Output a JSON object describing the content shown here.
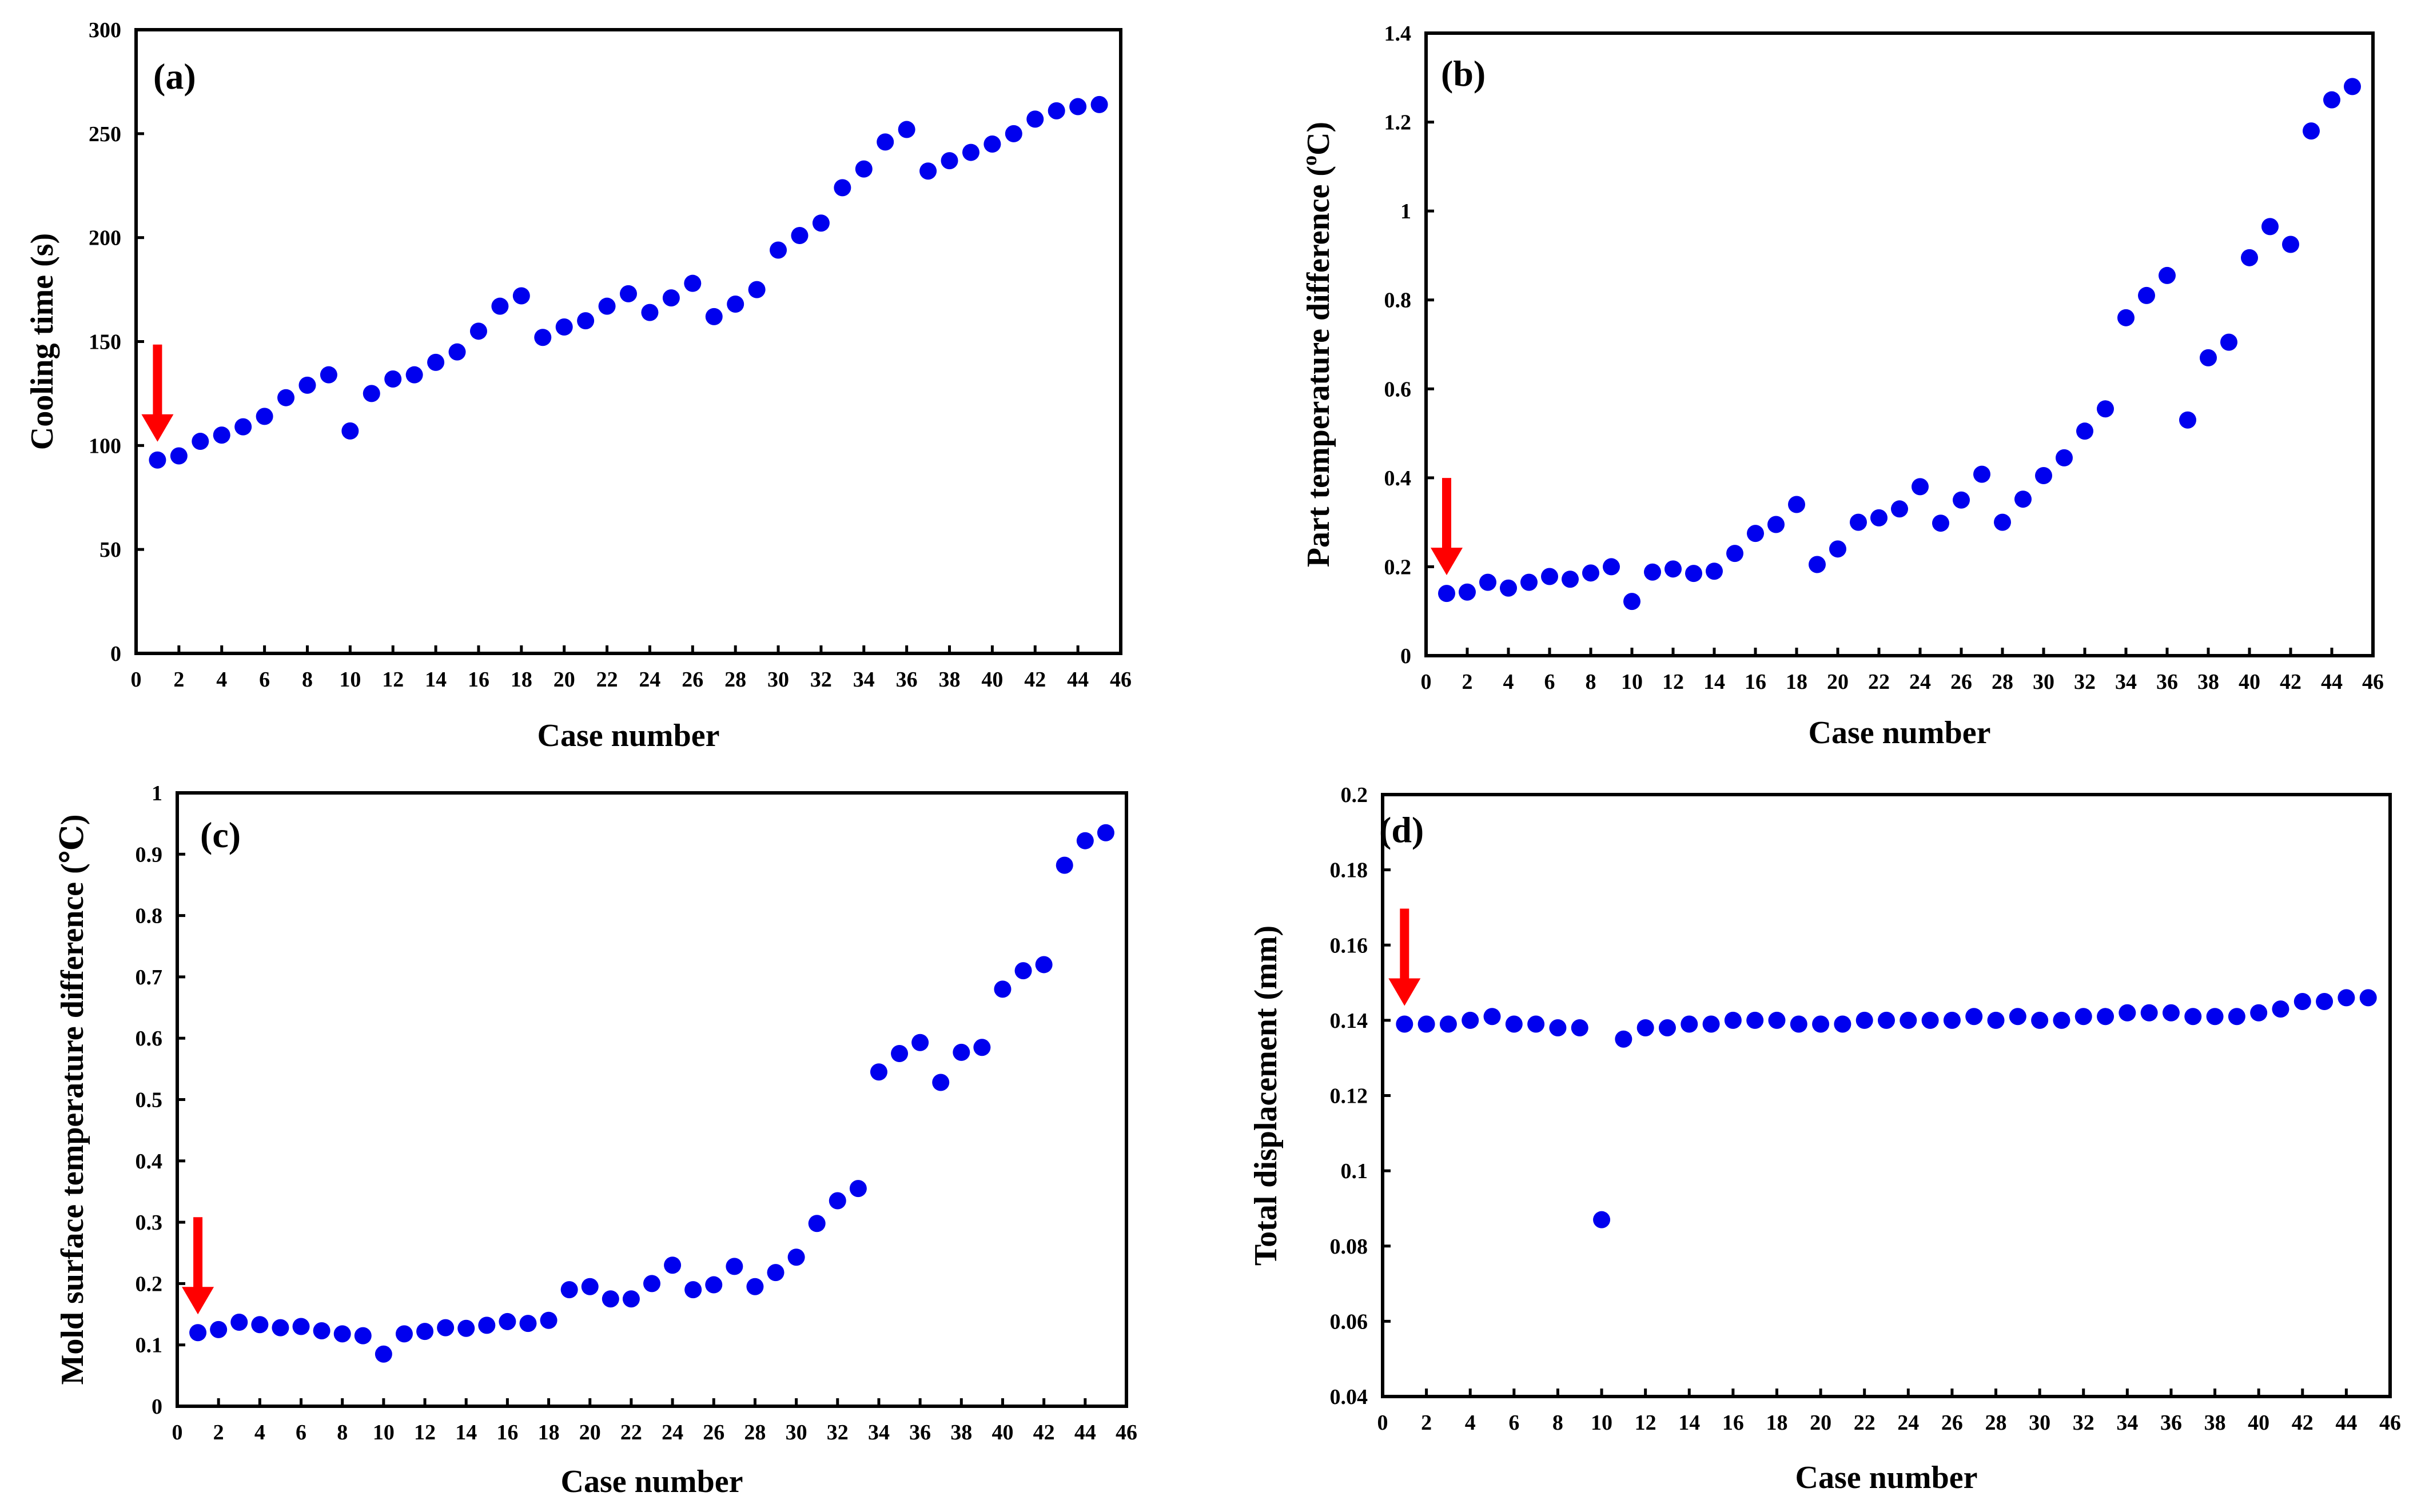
{
  "chart_data": [
    {
      "panel": "(a)",
      "type": "scatter",
      "xlabel": "Case number",
      "ylabel": "Cooling time (s)",
      "xlim": [
        0,
        46
      ],
      "xticks": [
        0,
        2,
        4,
        6,
        8,
        10,
        12,
        14,
        16,
        18,
        20,
        22,
        24,
        26,
        28,
        30,
        32,
        34,
        36,
        38,
        40,
        42,
        44,
        46
      ],
      "ylim": [
        0,
        300
      ],
      "yticks": [
        0,
        50,
        100,
        150,
        200,
        250,
        300
      ],
      "ytick_labels": [
        "0",
        "50",
        "100",
        "150",
        "200",
        "250",
        "300"
      ],
      "marker_color": "#0000ee",
      "arrow": {
        "x": 1,
        "color": "#ff0000"
      },
      "x": [
        1,
        2,
        3,
        4,
        5,
        6,
        7,
        8,
        9,
        10,
        11,
        12,
        13,
        14,
        15,
        16,
        17,
        18,
        19,
        20,
        21,
        22,
        23,
        24,
        25,
        26,
        27,
        28,
        29,
        30,
        31,
        32,
        33,
        34,
        35,
        36,
        37,
        38,
        39,
        40,
        41,
        42,
        43,
        44,
        45
      ],
      "y": [
        93,
        95,
        102,
        105,
        109,
        114,
        123,
        129,
        134,
        107,
        125,
        132,
        134,
        140,
        145,
        155,
        167,
        172,
        152,
        157,
        160,
        167,
        173,
        164,
        171,
        178,
        162,
        168,
        175,
        194,
        201,
        207,
        224,
        233,
        246,
        252,
        232,
        237,
        241,
        245,
        250,
        257,
        261,
        263,
        264
      ]
    },
    {
      "panel": "(b)",
      "type": "scatter",
      "xlabel": "Case number",
      "ylabel": "Part temperature difference (°C)",
      "ylabel_main": "Part temperature difference (",
      "ylabel_sup": "o",
      "ylabel_tail": "C)",
      "xlim": [
        0,
        46
      ],
      "xticks": [
        0,
        2,
        4,
        6,
        8,
        10,
        12,
        14,
        16,
        18,
        20,
        22,
        24,
        26,
        28,
        30,
        32,
        34,
        36,
        38,
        40,
        42,
        44,
        46
      ],
      "ylim": [
        0,
        1.4
      ],
      "yticks": [
        0,
        0.2,
        0.4,
        0.6,
        0.8,
        1,
        1.2,
        1.4
      ],
      "ytick_labels": [
        "0",
        "0.2",
        "0.4",
        "0.6",
        "0.8",
        "1",
        "1.2",
        "1.4"
      ],
      "marker_color": "#0000ee",
      "arrow": {
        "x": 1,
        "color": "#ff0000"
      },
      "x": [
        1,
        2,
        3,
        4,
        5,
        6,
        7,
        8,
        9,
        10,
        11,
        12,
        13,
        14,
        15,
        16,
        17,
        18,
        19,
        20,
        21,
        22,
        23,
        24,
        25,
        26,
        27,
        28,
        29,
        30,
        31,
        32,
        33,
        34,
        35,
        36,
        37,
        38,
        39,
        40,
        41,
        42,
        43,
        44,
        45
      ],
      "y": [
        0.14,
        0.143,
        0.165,
        0.152,
        0.165,
        0.178,
        0.172,
        0.186,
        0.2,
        0.122,
        0.188,
        0.195,
        0.185,
        0.19,
        0.23,
        0.275,
        0.295,
        0.34,
        0.205,
        0.24,
        0.3,
        0.31,
        0.33,
        0.38,
        0.298,
        0.35,
        0.408,
        0.3,
        0.352,
        0.405,
        0.445,
        0.505,
        0.555,
        0.76,
        0.81,
        0.855,
        0.53,
        0.67,
        0.705,
        0.895,
        0.965,
        0.925,
        1.18,
        1.25,
        1.28
      ]
    },
    {
      "panel": "(c)",
      "type": "scatter",
      "xlabel": "Case number",
      "ylabel": "Mold surface temperature difference (℃)",
      "xlim": [
        0,
        46
      ],
      "xticks": [
        0,
        2,
        4,
        6,
        8,
        10,
        12,
        14,
        16,
        18,
        20,
        22,
        24,
        26,
        28,
        30,
        32,
        34,
        36,
        38,
        40,
        42,
        44,
        46
      ],
      "ylim": [
        0,
        1
      ],
      "yticks": [
        0,
        0.1,
        0.2,
        0.3,
        0.4,
        0.5,
        0.6,
        0.7,
        0.8,
        0.9,
        1
      ],
      "ytick_labels": [
        "0",
        "0.1",
        "0.2",
        "0.3",
        "0.4",
        "0.5",
        "0.6",
        "0.7",
        "0.8",
        "0.9",
        "1"
      ],
      "marker_color": "#0000ee",
      "arrow": {
        "x": 1,
        "color": "#ff0000"
      },
      "x": [
        1,
        2,
        3,
        4,
        5,
        6,
        7,
        8,
        9,
        10,
        11,
        12,
        13,
        14,
        15,
        16,
        17,
        18,
        19,
        20,
        21,
        22,
        23,
        24,
        25,
        26,
        27,
        28,
        29,
        30,
        31,
        32,
        33,
        34,
        35,
        36,
        37,
        38,
        39,
        40,
        41,
        42,
        43,
        44,
        45
      ],
      "y": [
        0.12,
        0.125,
        0.137,
        0.133,
        0.128,
        0.13,
        0.123,
        0.118,
        0.115,
        0.085,
        0.118,
        0.122,
        0.128,
        0.127,
        0.132,
        0.138,
        0.135,
        0.14,
        0.19,
        0.195,
        0.175,
        0.175,
        0.2,
        0.23,
        0.19,
        0.198,
        0.228,
        0.195,
        0.218,
        0.243,
        0.298,
        0.335,
        0.355,
        0.545,
        0.575,
        0.593,
        0.528,
        0.577,
        0.585,
        0.68,
        0.71,
        0.72,
        0.882,
        0.922,
        0.935
      ]
    },
    {
      "panel": "(d)",
      "type": "scatter",
      "xlabel": "Case number",
      "ylabel": "Total displacement (mm)",
      "xlim": [
        0,
        46
      ],
      "xticks": [
        0,
        2,
        4,
        6,
        8,
        10,
        12,
        14,
        16,
        18,
        20,
        22,
        24,
        26,
        28,
        30,
        32,
        34,
        36,
        38,
        40,
        42,
        44,
        46
      ],
      "ylim": [
        0.04,
        0.2
      ],
      "yticks": [
        0.04,
        0.06,
        0.08,
        0.1,
        0.12,
        0.14,
        0.16,
        0.18,
        0.2
      ],
      "ytick_labels": [
        "0.04",
        "0.06",
        "0.08",
        "0.1",
        "0.12",
        "0.14",
        "0.16",
        "0.18",
        "0.2"
      ],
      "marker_color": "#0000ee",
      "arrow": {
        "x": 1,
        "color": "#ff0000"
      },
      "x": [
        1,
        2,
        3,
        4,
        5,
        6,
        7,
        8,
        9,
        10,
        11,
        12,
        13,
        14,
        15,
        16,
        17,
        18,
        19,
        20,
        21,
        22,
        23,
        24,
        25,
        26,
        27,
        28,
        29,
        30,
        31,
        32,
        33,
        34,
        35,
        36,
        37,
        38,
        39,
        40,
        41,
        42,
        43,
        44,
        45
      ],
      "y": [
        0.139,
        0.139,
        0.139,
        0.14,
        0.141,
        0.139,
        0.139,
        0.138,
        0.138,
        0.087,
        0.135,
        0.138,
        0.138,
        0.139,
        0.139,
        0.14,
        0.14,
        0.14,
        0.139,
        0.139,
        0.139,
        0.14,
        0.14,
        0.14,
        0.14,
        0.14,
        0.141,
        0.14,
        0.141,
        0.14,
        0.14,
        0.141,
        0.141,
        0.142,
        0.142,
        0.142,
        0.141,
        0.141,
        0.141,
        0.142,
        0.143,
        0.145,
        0.145,
        0.146,
        0.146
      ]
    }
  ]
}
